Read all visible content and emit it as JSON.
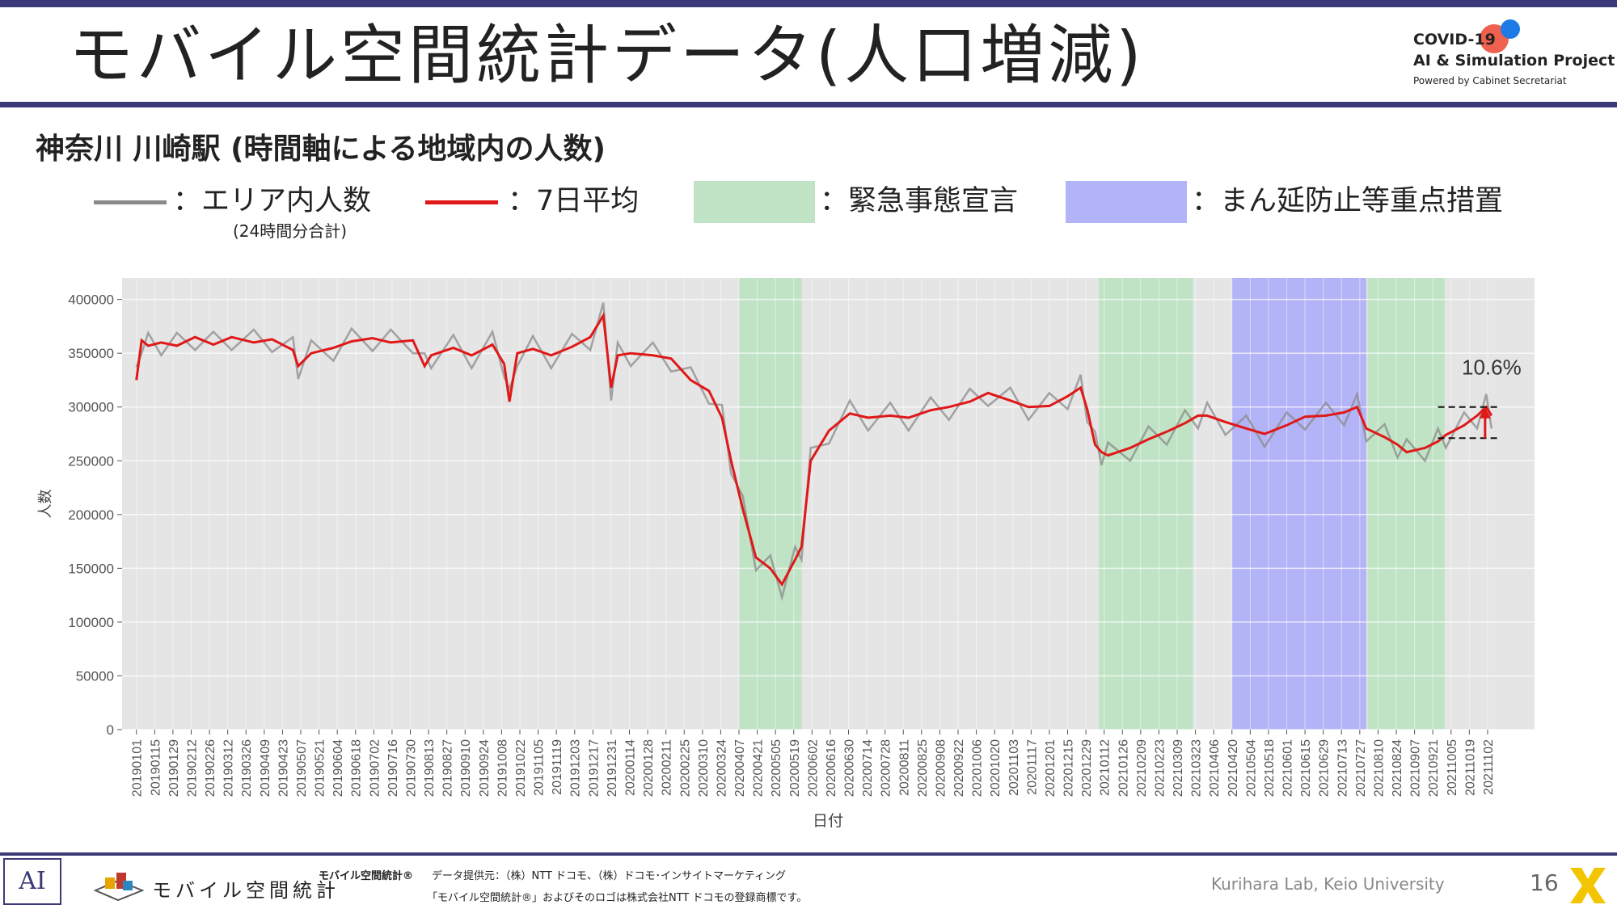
{
  "header": {
    "title": "モバイル空間統計データ(人口増減)",
    "logo_line1": "COVID-19",
    "logo_line2": "AI & Simulation Project",
    "logo_line3": "Powered by Cabinet Secretariat"
  },
  "subtitle": "神奈川 川崎駅 (時間軸による地域内の人数)",
  "legend": {
    "area_label": "：エリア内人数",
    "area_note": "(24時間分合計)",
    "avg_label": "：7日平均",
    "emergency_label": "：緊急事態宣言",
    "semi_label": "：まん延防止等重点措置",
    "colors": {
      "area": "#8a8a8a",
      "avg": "#e01818",
      "emergency": "#bfe3c4",
      "semi": "#b3b3f7"
    }
  },
  "chart_data": {
    "type": "line",
    "xlabel": "日付",
    "ylabel": "人数",
    "ylim": [
      0,
      420000
    ],
    "yticks": [
      "0",
      "50000",
      "100000",
      "150000",
      "200000",
      "250000",
      "300000",
      "350000",
      "400000"
    ],
    "ytick_values": [
      0,
      50000,
      100000,
      150000,
      200000,
      250000,
      300000,
      350000,
      400000
    ],
    "xlim": [
      "20181221",
      "20211208"
    ],
    "xticks": [
      "20190101",
      "20190115",
      "20190129",
      "20190212",
      "20190226",
      "20190312",
      "20190326",
      "20190409",
      "20190423",
      "20190507",
      "20190521",
      "20190604",
      "20190618",
      "20190702",
      "20190716",
      "20190730",
      "20190813",
      "20190827",
      "20190910",
      "20190924",
      "20191008",
      "20191022",
      "20191105",
      "20191119",
      "20191203",
      "20191217",
      "20191231",
      "20200114",
      "20200128",
      "20200211",
      "20200225",
      "20200310",
      "20200324",
      "20200407",
      "20200421",
      "20200505",
      "20200519",
      "20200602",
      "20200616",
      "20200630",
      "20200714",
      "20200728",
      "20200811",
      "20200825",
      "20200908",
      "20200922",
      "20201006",
      "20201020",
      "20201103",
      "20201117",
      "20201201",
      "20201215",
      "20201229",
      "20210112",
      "20210126",
      "20210209",
      "20210223",
      "20210309",
      "20210323",
      "20210406",
      "20210420",
      "20210504",
      "20210518",
      "20210601",
      "20210615",
      "20210629",
      "20210713",
      "20210727",
      "20210810",
      "20210824",
      "20210907",
      "20210921",
      "20211005",
      "20211019",
      "20211102"
    ],
    "series": [
      {
        "name": "7日平均",
        "x": [
          "20190101",
          "20190105",
          "20190110",
          "20190120",
          "20190201",
          "20190215",
          "20190301",
          "20190315",
          "20190401",
          "20190415",
          "20190501",
          "20190505",
          "20190515",
          "20190601",
          "20190615",
          "20190701",
          "20190715",
          "20190801",
          "20190810",
          "20190815",
          "20190901",
          "20190915",
          "20191001",
          "20191010",
          "20191014",
          "20191020",
          "20191101",
          "20191115",
          "20191201",
          "20191215",
          "20191225",
          "20191231",
          "20200105",
          "20200115",
          "20200201",
          "20200215",
          "20200301",
          "20200315",
          "20200325",
          "20200401",
          "20200410",
          "20200420",
          "20200501",
          "20200510",
          "20200520",
          "20200525",
          "20200601",
          "20200615",
          "20200701",
          "20200715",
          "20200801",
          "20200815",
          "20200901",
          "20200915",
          "20201001",
          "20201015",
          "20201101",
          "20201115",
          "20201201",
          "20201215",
          "20201225",
          "20201230",
          "20210105",
          "20210110",
          "20210115",
          "20210201",
          "20210215",
          "20210301",
          "20210315",
          "20210325",
          "20210401",
          "20210415",
          "20210501",
          "20210515",
          "20210601",
          "20210615",
          "20210701",
          "20210715",
          "20210725",
          "20210801",
          "20210815",
          "20210825",
          "20210901",
          "20210915",
          "20210925",
          "20211001",
          "20211015",
          "20211025",
          "20211101",
          "20211105"
        ],
        "y": [
          325000,
          362000,
          357000,
          360000,
          357000,
          365000,
          358000,
          365000,
          360000,
          363000,
          353000,
          338000,
          350000,
          355000,
          361000,
          364000,
          360000,
          362000,
          338000,
          348000,
          355000,
          348000,
          358000,
          340000,
          305000,
          350000,
          354000,
          348000,
          356000,
          365000,
          385000,
          318000,
          348000,
          350000,
          348000,
          345000,
          325000,
          315000,
          290000,
          250000,
          205000,
          160000,
          150000,
          135000,
          158000,
          170000,
          250000,
          278000,
          294000,
          290000,
          292000,
          290000,
          297000,
          300000,
          305000,
          313000,
          306000,
          300000,
          301000,
          310000,
          318000,
          298000,
          265000,
          258000,
          255000,
          262000,
          270000,
          277000,
          285000,
          292000,
          292000,
          286000,
          280000,
          275000,
          283000,
          291000,
          292000,
          295000,
          300000,
          280000,
          272000,
          265000,
          258000,
          262000,
          268000,
          274000,
          283000,
          292000,
          300000,
          292000
        ]
      },
      {
        "name": "エリア内人数",
        "x": [
          "20190101",
          "20190105",
          "20190110",
          "20190120",
          "20190201",
          "20190215",
          "20190301",
          "20190315",
          "20190401",
          "20190415",
          "20190501",
          "20190505",
          "20190515",
          "20190601",
          "20190615",
          "20190701",
          "20190715",
          "20190801",
          "20190810",
          "20190815",
          "20190901",
          "20190915",
          "20191001",
          "20191010",
          "20191014",
          "20191020",
          "20191101",
          "20191115",
          "20191201",
          "20191215",
          "20191225",
          "20191231",
          "20200105",
          "20200115",
          "20200201",
          "20200215",
          "20200301",
          "20200315",
          "20200325",
          "20200401",
          "20200410",
          "20200420",
          "20200501",
          "20200510",
          "20200520",
          "20200525",
          "20200601",
          "20200615",
          "20200701",
          "20200715",
          "20200801",
          "20200815",
          "20200901",
          "20200915",
          "20201001",
          "20201015",
          "20201101",
          "20201115",
          "20201201",
          "20201215",
          "20201225",
          "20201230",
          "20210105",
          "20210110",
          "20210115",
          "20210201",
          "20210215",
          "20210301",
          "20210315",
          "20210325",
          "20210401",
          "20210415",
          "20210501",
          "20210515",
          "20210601",
          "20210615",
          "20210701",
          "20210715",
          "20210725",
          "20210801",
          "20210815",
          "20210825",
          "20210901",
          "20210915",
          "20210925",
          "20211001",
          "20211015",
          "20211025",
          "20211101",
          "20211105"
        ],
        "y": [
          325000,
          362000,
          357000,
          360000,
          357000,
          365000,
          358000,
          365000,
          360000,
          363000,
          353000,
          338000,
          350000,
          355000,
          361000,
          364000,
          360000,
          362000,
          338000,
          348000,
          355000,
          348000,
          358000,
          340000,
          305000,
          350000,
          354000,
          348000,
          356000,
          365000,
          385000,
          318000,
          348000,
          350000,
          348000,
          345000,
          325000,
          315000,
          290000,
          250000,
          205000,
          160000,
          150000,
          135000,
          158000,
          170000,
          250000,
          278000,
          294000,
          290000,
          292000,
          290000,
          297000,
          300000,
          305000,
          313000,
          306000,
          300000,
          301000,
          310000,
          318000,
          298000,
          265000,
          258000,
          255000,
          262000,
          270000,
          277000,
          285000,
          292000,
          292000,
          286000,
          280000,
          275000,
          283000,
          291000,
          292000,
          295000,
          300000,
          280000,
          272000,
          265000,
          258000,
          262000,
          268000,
          274000,
          283000,
          292000,
          300000,
          292000
        ]
      }
    ],
    "periods": [
      {
        "type": "緊急事態宣言",
        "start": "20200407",
        "end": "20200525"
      },
      {
        "type": "緊急事態宣言",
        "start": "20210108",
        "end": "20210321"
      },
      {
        "type": "まん延防止等重点措置",
        "start": "20210420",
        "end": "20210801"
      },
      {
        "type": "緊急事態宣言",
        "start": "20210802",
        "end": "20210930"
      }
    ],
    "annotation": {
      "text": "10.6%",
      "from": 271000,
      "to": 300000,
      "x_start": "20210925",
      "x_end": "20211110"
    },
    "grid": true,
    "legend_position": "top"
  },
  "footer": {
    "brand": "モバイル空間統計",
    "registered": "モバイル空間統計®",
    "source": "データ提供元：（株）NTT ドコモ、（株）ドコモ･インサイトマーケティング",
    "trademark": "「モバイル空間統計®」およびそのロゴは株式会社NTT ドコモの登録商標です。",
    "lab": "Kurihara Lab, Keio University",
    "page": "16"
  }
}
